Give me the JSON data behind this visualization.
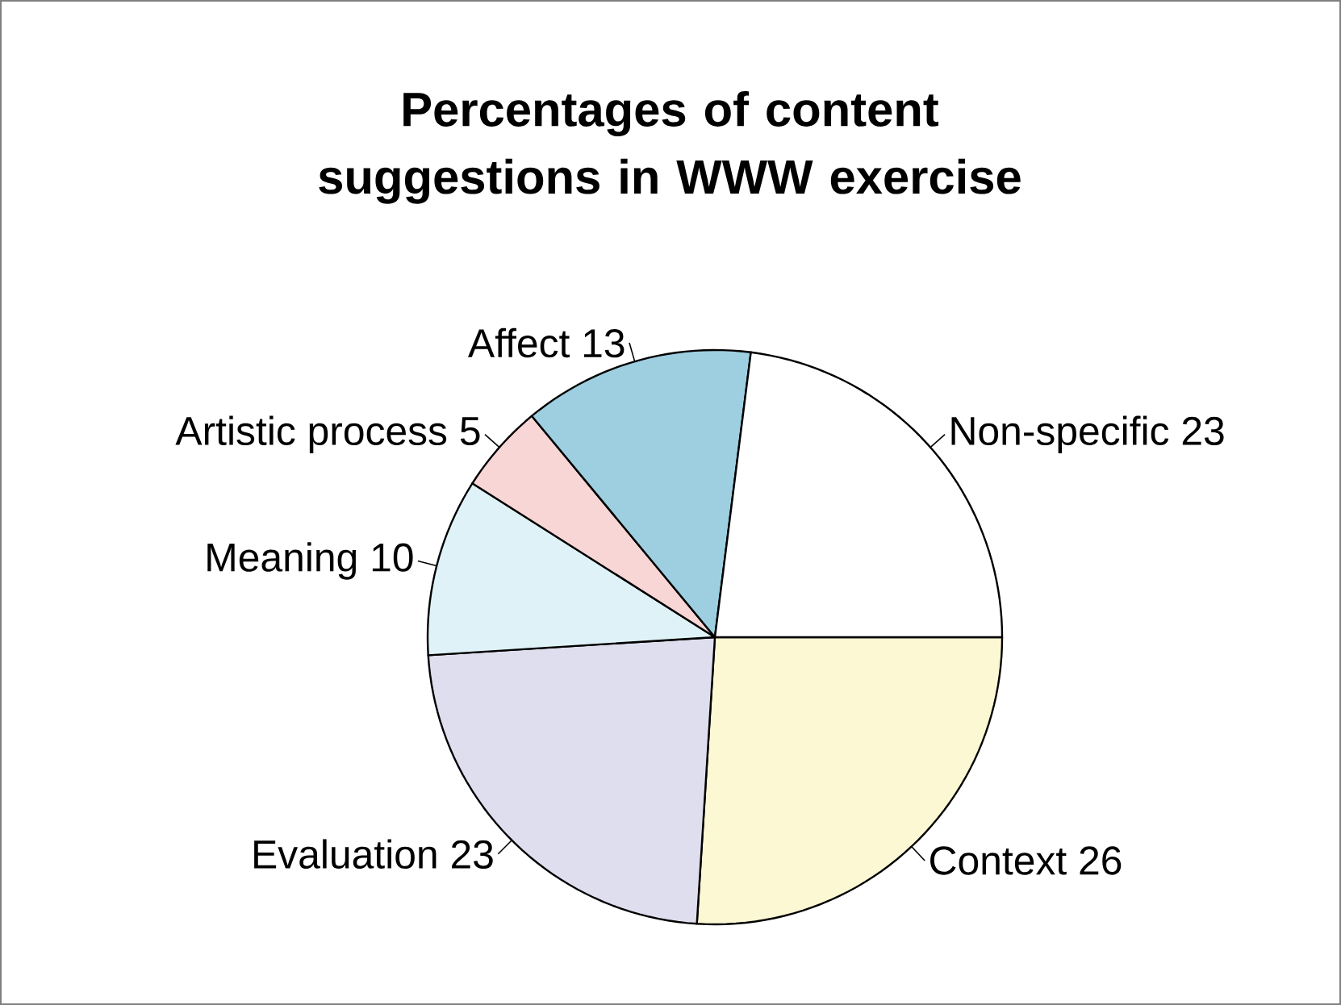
{
  "chart_data": {
    "type": "pie",
    "title": "Percentages of content suggestions in WWW exercise",
    "categories": [
      "Context",
      "Evaluation",
      "Meaning",
      "Artistic process",
      "Affect",
      "Non-specific"
    ],
    "values": [
      26,
      23,
      10,
      5,
      13,
      23
    ],
    "colors": [
      "#fdf8d4",
      "#dedeef",
      "#dff2f7",
      "#f9d6d6",
      "#9dcfe0",
      "#ffffff"
    ],
    "data_labels": true
  }
}
